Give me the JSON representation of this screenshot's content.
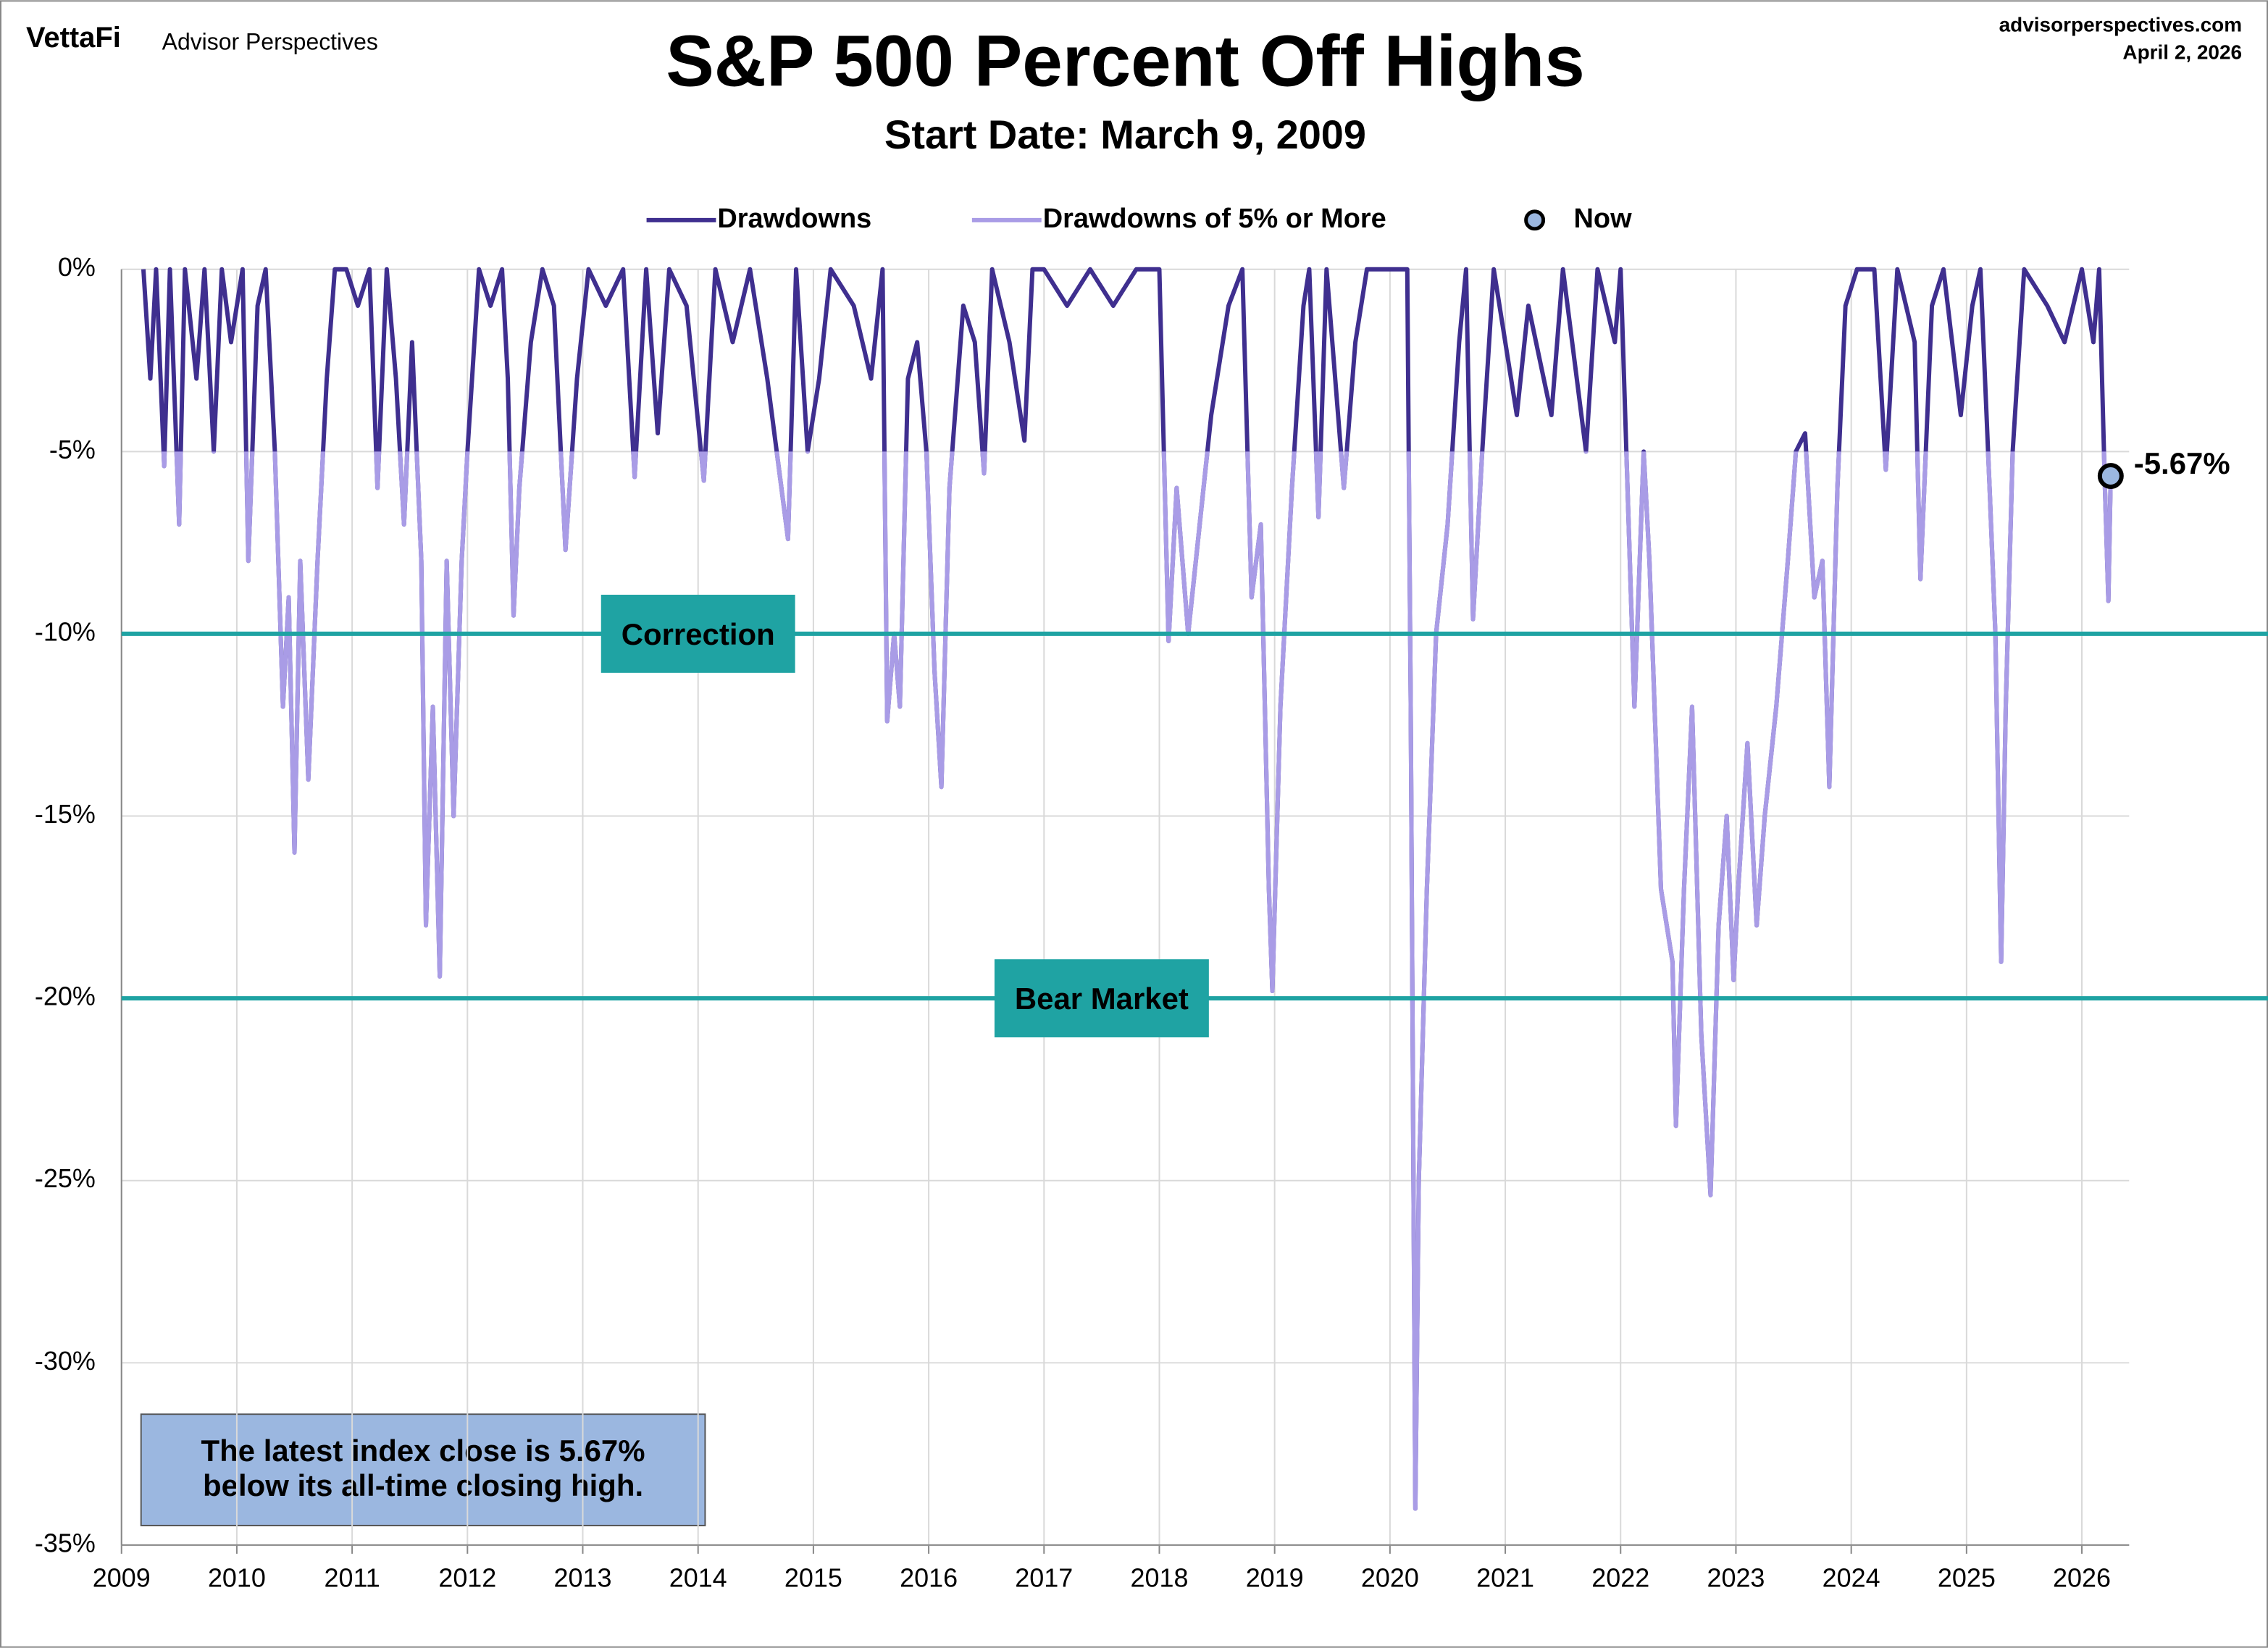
{
  "brand": "VettaFi",
  "publisher": "Advisor Perspectives",
  "site": "advisorperspectives.com",
  "date": "April 2, 2026",
  "chart_data": {
    "type": "line",
    "title": "S&P 500 Percent Off Highs",
    "subtitle": "Start Date: March 9, 2009",
    "xlim": [
      2009,
      2026.41
    ],
    "xticks": [
      2009,
      2010,
      2011,
      2012,
      2013,
      2014,
      2015,
      2016,
      2017,
      2018,
      2019,
      2020,
      2021,
      2022,
      2023,
      2024,
      2025,
      2026
    ],
    "ylim": [
      -35,
      0
    ],
    "yticks": [
      {
        "value": 0,
        "label": "0%"
      },
      {
        "value": -5,
        "label": "-5%"
      },
      {
        "value": -10,
        "label": "-10%"
      },
      {
        "value": -15,
        "label": "-15%"
      },
      {
        "value": -20,
        "label": "-20%"
      },
      {
        "value": -25,
        "label": "-25%"
      },
      {
        "value": -30,
        "label": "-30%"
      },
      {
        "value": -35,
        "label": "-35%"
      }
    ],
    "grid": true,
    "x": [
      2009.19,
      2009.25,
      2009.3,
      2009.37,
      2009.42,
      2009.5,
      2009.55,
      2009.65,
      2009.72,
      2009.8,
      2009.87,
      2009.95,
      2010.05,
      2010.1,
      2010.18,
      2010.25,
      2010.33,
      2010.4,
      2010.45,
      2010.5,
      2010.55,
      2010.62,
      2010.7,
      2010.78,
      2010.85,
      2010.95,
      2011.05,
      2011.15,
      2011.22,
      2011.3,
      2011.38,
      2011.45,
      2011.52,
      2011.6,
      2011.64,
      2011.7,
      2011.76,
      2011.82,
      2011.88,
      2011.95,
      2012.0,
      2012.1,
      2012.2,
      2012.3,
      2012.35,
      2012.4,
      2012.45,
      2012.55,
      2012.65,
      2012.75,
      2012.85,
      2012.95,
      2013.05,
      2013.2,
      2013.35,
      2013.45,
      2013.55,
      2013.65,
      2013.75,
      2013.9,
      2014.05,
      2014.15,
      2014.3,
      2014.45,
      2014.6,
      2014.78,
      2014.85,
      2014.95,
      2015.05,
      2015.15,
      2015.35,
      2015.5,
      2015.6,
      2015.64,
      2015.7,
      2015.75,
      2015.82,
      2015.9,
      2015.98,
      2016.05,
      2016.11,
      2016.18,
      2016.3,
      2016.4,
      2016.48,
      2016.55,
      2016.7,
      2016.83,
      2016.9,
      2017.0,
      2017.2,
      2017.4,
      2017.6,
      2017.8,
      2018.0,
      2018.08,
      2018.15,
      2018.25,
      2018.35,
      2018.45,
      2018.6,
      2018.72,
      2018.8,
      2018.88,
      2018.95,
      2018.98,
      2019.05,
      2019.15,
      2019.25,
      2019.3,
      2019.38,
      2019.45,
      2019.6,
      2019.7,
      2019.8,
      2020.1,
      2020.15,
      2020.18,
      2020.22,
      2020.25,
      2020.32,
      2020.4,
      2020.5,
      2020.6,
      2020.66,
      2020.72,
      2020.8,
      2020.9,
      2021.1,
      2021.2,
      2021.4,
      2021.5,
      2021.7,
      2021.8,
      2021.95,
      2022.0,
      2022.05,
      2022.12,
      2022.2,
      2022.25,
      2022.35,
      2022.45,
      2022.48,
      2022.55,
      2022.62,
      2022.7,
      2022.78,
      2022.85,
      2022.92,
      2022.98,
      2023.02,
      2023.1,
      2023.18,
      2023.25,
      2023.35,
      2023.45,
      2023.52,
      2023.6,
      2023.68,
      2023.75,
      2023.81,
      2023.88,
      2023.95,
      2024.05,
      2024.2,
      2024.3,
      2024.4,
      2024.55,
      2024.6,
      2024.7,
      2024.8,
      2024.95,
      2025.05,
      2025.12,
      2025.2,
      2025.25,
      2025.3,
      2025.34,
      2025.4,
      2025.5,
      2025.7,
      2025.85,
      2026.0,
      2026.1,
      2026.15,
      2026.2,
      2026.23,
      2026.25
    ],
    "series": [
      {
        "name": "Drawdowns",
        "color": "#3f2f8f",
        "values": [
          0,
          -3,
          0,
          -5.4,
          0,
          -7,
          0,
          -3,
          0,
          -5,
          0,
          -2,
          0,
          -8,
          -1,
          0,
          -5,
          -12,
          -9,
          -16,
          -8,
          -14,
          -8,
          -3,
          0,
          0,
          -1,
          0,
          -6,
          0,
          -3,
          -7,
          -2,
          -8,
          -18,
          -12,
          -19.4,
          -8,
          -15,
          -8,
          -5,
          0,
          -1,
          0,
          -3,
          -9.5,
          -6,
          -2,
          0,
          -1,
          -7.7,
          -3,
          0,
          -1,
          0,
          -5.7,
          0,
          -4.5,
          0,
          -1,
          -5.8,
          0,
          -2,
          0,
          -3,
          -7.4,
          0,
          -5,
          -3,
          0,
          -1,
          -3,
          0,
          -12.4,
          -10,
          -12,
          -3,
          -2,
          -5,
          -11,
          -14.2,
          -6,
          -1,
          -2,
          -5.6,
          0,
          -2,
          -4.7,
          0,
          0,
          -1,
          0,
          -1,
          0,
          0,
          -10.2,
          -6,
          -10,
          -7,
          -4,
          -1,
          0,
          -9,
          -7,
          -17,
          -19.8,
          -12,
          -6,
          -1,
          0,
          -6.8,
          0,
          -6,
          -2,
          0,
          0,
          0,
          -12,
          -34,
          -25,
          -17,
          -10,
          -7,
          -2,
          0,
          -9.6,
          -5,
          0,
          -4,
          -1,
          -4,
          0,
          -5,
          0,
          -2,
          0,
          -5,
          -12,
          -5,
          -8,
          -17,
          -19,
          -23.5,
          -17,
          -12,
          -21,
          -25.4,
          -18,
          -15,
          -19.5,
          -17,
          -13,
          -18,
          -15,
          -12,
          -8,
          -5,
          -4.5,
          -9,
          -8,
          -14.2,
          -6,
          -1,
          0,
          0,
          -5.5,
          0,
          -2,
          -8.5,
          -1,
          0,
          -4,
          -1,
          0,
          -6,
          -10,
          -19,
          -12,
          -5,
          0,
          -1,
          -2,
          0,
          -2,
          0,
          -6,
          -9.1,
          -5.67
        ]
      },
      {
        "name": "Drawdowns of 5% or More",
        "color": "#a99ce6",
        "threshold": -5,
        "values": [
          0,
          -3,
          0,
          -5.4,
          0,
          -7,
          0,
          -3,
          0,
          -5,
          0,
          -2,
          0,
          -8,
          -1,
          0,
          -5,
          -12,
          -9,
          -16,
          -8,
          -14,
          -8,
          -3,
          0,
          0,
          -1,
          0,
          -6,
          0,
          -3,
          -7,
          -2,
          -8,
          -18,
          -12,
          -19.4,
          -8,
          -15,
          -8,
          -5,
          0,
          -1,
          0,
          -3,
          -9.5,
          -6,
          -2,
          0,
          -1,
          -7.7,
          -3,
          0,
          -1,
          0,
          -5.7,
          0,
          -4.5,
          0,
          -1,
          -5.8,
          0,
          -2,
          0,
          -3,
          -7.4,
          0,
          -5,
          -3,
          0,
          -1,
          -3,
          0,
          -12.4,
          -10,
          -12,
          -3,
          -2,
          -5,
          -11,
          -14.2,
          -6,
          -1,
          -2,
          -5.6,
          0,
          -2,
          -4.7,
          0,
          0,
          -1,
          0,
          -1,
          0,
          0,
          -10.2,
          -6,
          -10,
          -7,
          -4,
          -1,
          0,
          -9,
          -7,
          -17,
          -19.8,
          -12,
          -6,
          -1,
          0,
          -6.8,
          0,
          -6,
          -2,
          0,
          0,
          0,
          -12,
          -34,
          -25,
          -17,
          -10,
          -7,
          -2,
          0,
          -9.6,
          -5,
          0,
          -4,
          -1,
          -4,
          0,
          -5,
          0,
          -2,
          0,
          -5,
          -12,
          -5,
          -8,
          -17,
          -19,
          -23.5,
          -17,
          -12,
          -21,
          -25.4,
          -18,
          -15,
          -19.5,
          -17,
          -13,
          -18,
          -15,
          -12,
          -8,
          -5,
          -4.5,
          -9,
          -8,
          -14.2,
          -6,
          -1,
          0,
          0,
          -5.5,
          0,
          -2,
          -8.5,
          -1,
          0,
          -4,
          -1,
          0,
          -6,
          -10,
          -19,
          -12,
          -5,
          0,
          -1,
          -2,
          0,
          -2,
          0,
          -6,
          -9.1,
          -5.67
        ]
      }
    ],
    "now": {
      "name": "Now",
      "x": 2026.25,
      "value": -5.67,
      "value_label": "-5.67%",
      "color": "#9bb7e0"
    },
    "reference_lines": [
      {
        "value": -10,
        "label": "Correction",
        "x": 2014.0
      },
      {
        "value": -20,
        "label": "Bear Market",
        "x": 2017.5
      }
    ],
    "ref_color": "#1fa3a3",
    "annotation": "The latest index close is 5.67% below its all-time closing high."
  }
}
